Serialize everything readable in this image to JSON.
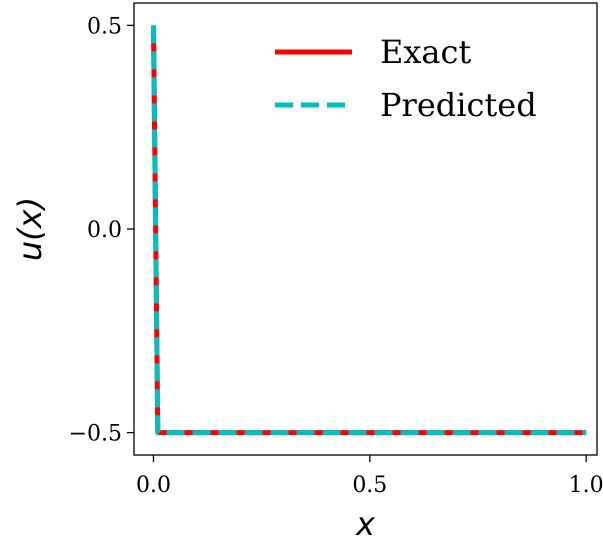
{
  "chart_data": {
    "type": "line",
    "xlabel": "x",
    "ylabel": "u(x)",
    "xlim": [
      -0.045,
      1.025
    ],
    "ylim": [
      -0.555,
      0.555
    ],
    "xticks": [
      0.0,
      0.5,
      1.0
    ],
    "xtick_labels": [
      "0.0",
      "0.5",
      "1.0"
    ],
    "yticks": [
      0.5,
      0.0,
      -0.5
    ],
    "ytick_labels": [
      "0.5",
      "0.0",
      "−0.5"
    ],
    "grid": false,
    "legend_position": "top-right",
    "series": [
      {
        "name": "Exact",
        "color": "#ff0000",
        "style": "solid",
        "x": [
          0.0,
          0.0,
          0.01,
          1.0
        ],
        "y": [
          0.5,
          0.5,
          -0.5,
          -0.5
        ]
      },
      {
        "name": "Predicted",
        "color": "#00bfbf",
        "style": "dashed",
        "x": [
          0.0,
          0.0,
          0.01,
          1.0
        ],
        "y": [
          0.5,
          0.5,
          -0.5,
          -0.5
        ]
      }
    ]
  }
}
